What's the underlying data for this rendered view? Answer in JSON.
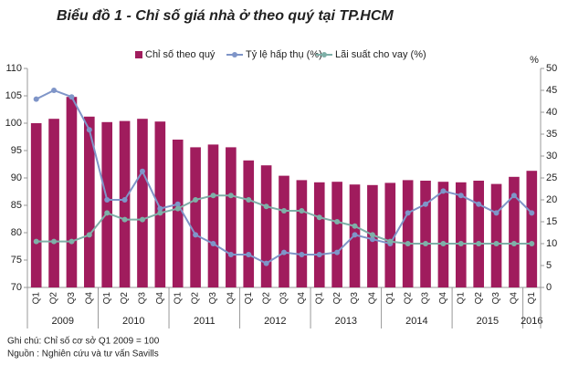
{
  "chart_data": {
    "type": "bar_line",
    "title": "Biểu đồ 1 - Chỉ số giá nhà ở theo quý tại TP.HCM",
    "y2_label": "%",
    "categories": [
      "Q1",
      "Q2",
      "Q3",
      "Q4",
      "Q1",
      "Q2",
      "Q3",
      "Q4",
      "Q1",
      "Q2",
      "Q3",
      "Q4",
      "Q1",
      "Q2",
      "Q3",
      "Q4",
      "Q1",
      "Q2",
      "Q3",
      "Q4",
      "Q1",
      "Q2",
      "Q3",
      "Q4",
      "Q1",
      "Q2",
      "Q3",
      "Q4",
      "Q1"
    ],
    "years": [
      "2009",
      "2010",
      "2011",
      "2012",
      "2013",
      "2014",
      "2015",
      "2016"
    ],
    "series": [
      {
        "name": "Chỉ số theo quý",
        "color": "#a01c5d",
        "type": "bar",
        "values": [
          100,
          100.8,
          104.8,
          101.2,
          100.2,
          100.4,
          100.8,
          100.3,
          97,
          95.6,
          96.1,
          95.6,
          93.2,
          92.3,
          90.4,
          89.6,
          89.2,
          89.3,
          88.8,
          88.7,
          89.1,
          89.6,
          89.5,
          89.3,
          89.2,
          89.5,
          88.9,
          90.2,
          91.3
        ]
      },
      {
        "name": "Tỷ lệ hấp thụ (%)",
        "color": "#7f95c8",
        "type": "line",
        "axis": "y2",
        "values": [
          43,
          45,
          43.5,
          36,
          20,
          20,
          26.5,
          18,
          19,
          12,
          10,
          7.5,
          7.5,
          5.5,
          8,
          7.5,
          7.5,
          8,
          12,
          11,
          10,
          17,
          19,
          22,
          21,
          19,
          17,
          21,
          17
        ]
      },
      {
        "name": "Lãi suất cho vay (%)",
        "color": "#7fb0a8",
        "type": "line",
        "axis": "y2",
        "values": [
          10.5,
          10.5,
          10.5,
          12,
          17,
          15.5,
          15.5,
          17,
          18,
          20,
          21,
          21,
          20,
          18.5,
          17.5,
          17.5,
          16,
          15,
          14,
          12,
          10.5,
          10,
          10,
          10,
          10,
          10,
          10,
          10,
          10
        ]
      }
    ],
    "ylim": [
      70,
      110
    ],
    "yticks": [
      70,
      75,
      80,
      85,
      90,
      95,
      100,
      105,
      110
    ],
    "y2lim": [
      0,
      50
    ],
    "y2ticks": [
      0,
      5,
      10,
      15,
      20,
      25,
      30,
      35,
      40,
      45,
      50
    ],
    "notes": [
      "Ghi chú: Chỉ số cơ sở Q1 2009 = 100",
      "Nguồn : Nghiên cứu và tư vấn Savills"
    ]
  }
}
